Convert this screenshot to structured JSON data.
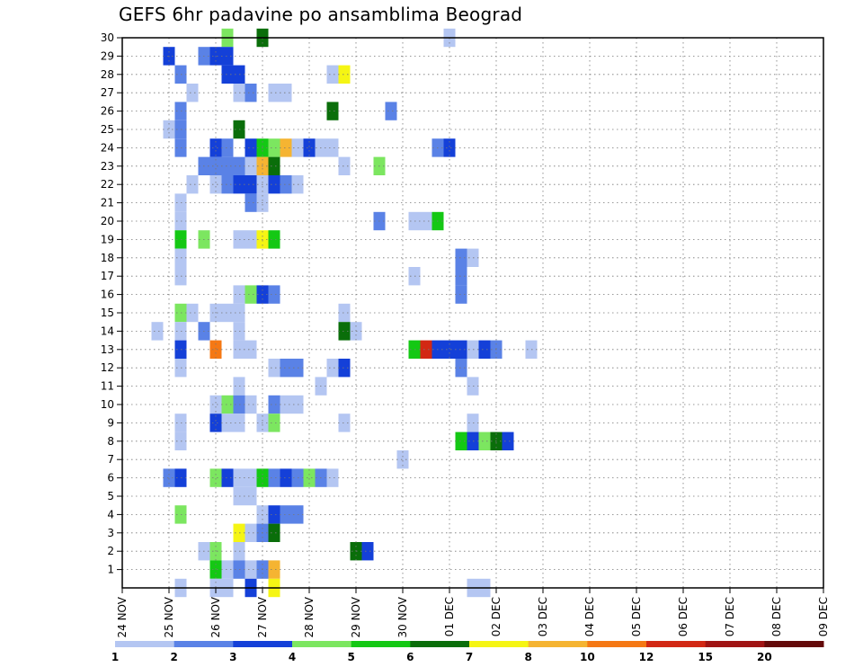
{
  "chart_data": {
    "type": "heatmap",
    "title": "GEFS 6hr padavine po ansamblima Beograd",
    "x_ticks": [
      "24 NOV",
      "25 NOV",
      "26 NOV",
      "27 NOV",
      "28 NOV",
      "29 NOV",
      "30 NOV",
      "01 DEC",
      "02 DEC",
      "03 DEC",
      "04 DEC",
      "05 DEC",
      "06 DEC",
      "07 DEC",
      "08 DEC",
      "09 DEC"
    ],
    "x_steps_per_day": 4,
    "y_ticks": [
      1,
      2,
      3,
      4,
      5,
      6,
      7,
      8,
      9,
      10,
      11,
      12,
      13,
      14,
      15,
      16,
      17,
      18,
      19,
      20,
      21,
      22,
      23,
      24,
      25,
      26,
      27,
      28,
      29,
      30
    ],
    "ylim": [
      0,
      30
    ],
    "grid": true,
    "legend": {
      "position": "bottom",
      "labels": [
        "1",
        "2",
        "3",
        "4",
        "5",
        "6",
        "7",
        "8",
        "10",
        "12",
        "15",
        "20"
      ],
      "colors": [
        "#b4c6f2",
        "#5a82e6",
        "#1440d8",
        "#7ce660",
        "#14c814",
        "#0a6e0a",
        "#f5f514",
        "#f5b432",
        "#f57814",
        "#d22814",
        "#a01414",
        "#640a0a"
      ]
    },
    "cells": [
      [
        8,
        30,
        4
      ],
      [
        11,
        30,
        6
      ],
      [
        27,
        30,
        1
      ],
      [
        3,
        29,
        3
      ],
      [
        6,
        29,
        2
      ],
      [
        7,
        29,
        3
      ],
      [
        8,
        29,
        3
      ],
      [
        4,
        28,
        2
      ],
      [
        8,
        28,
        3
      ],
      [
        9,
        28,
        3
      ],
      [
        17,
        28,
        1
      ],
      [
        18,
        28,
        7
      ],
      [
        5,
        27,
        1
      ],
      [
        9,
        27,
        1
      ],
      [
        10,
        27,
        2
      ],
      [
        12,
        27,
        1
      ],
      [
        13,
        27,
        1
      ],
      [
        4,
        26,
        2
      ],
      [
        17,
        26,
        6
      ],
      [
        22,
        26,
        2
      ],
      [
        3,
        25,
        1
      ],
      [
        4,
        25,
        2
      ],
      [
        9,
        25,
        6
      ],
      [
        4,
        24,
        2
      ],
      [
        7,
        24,
        3
      ],
      [
        8,
        24,
        2
      ],
      [
        10,
        24,
        3
      ],
      [
        11,
        24,
        5
      ],
      [
        12,
        24,
        4
      ],
      [
        13,
        24,
        8
      ],
      [
        14,
        24,
        1
      ],
      [
        15,
        24,
        3
      ],
      [
        16,
        24,
        1
      ],
      [
        17,
        24,
        1
      ],
      [
        26,
        24,
        2
      ],
      [
        27,
        24,
        3
      ],
      [
        6,
        23,
        2
      ],
      [
        7,
        23,
        2
      ],
      [
        8,
        23,
        2
      ],
      [
        9,
        23,
        2
      ],
      [
        10,
        23,
        1
      ],
      [
        11,
        23,
        8
      ],
      [
        12,
        23,
        6
      ],
      [
        18,
        23,
        1
      ],
      [
        21,
        23,
        4
      ],
      [
        5,
        22,
        1
      ],
      [
        7,
        22,
        1
      ],
      [
        8,
        22,
        2
      ],
      [
        9,
        22,
        3
      ],
      [
        10,
        22,
        3
      ],
      [
        11,
        22,
        1
      ],
      [
        12,
        22,
        3
      ],
      [
        13,
        22,
        2
      ],
      [
        14,
        22,
        1
      ],
      [
        4,
        21,
        1
      ],
      [
        10,
        21,
        2
      ],
      [
        11,
        21,
        1
      ],
      [
        4,
        20,
        1
      ],
      [
        21,
        20,
        2
      ],
      [
        24,
        20,
        1
      ],
      [
        25,
        20,
        1
      ],
      [
        26,
        20,
        5
      ],
      [
        4,
        19,
        5
      ],
      [
        6,
        19,
        4
      ],
      [
        9,
        19,
        1
      ],
      [
        10,
        19,
        1
      ],
      [
        11,
        19,
        7
      ],
      [
        12,
        19,
        5
      ],
      [
        4,
        18,
        1
      ],
      [
        28,
        18,
        2
      ],
      [
        29,
        18,
        1
      ],
      [
        4,
        17,
        1
      ],
      [
        24,
        17,
        1
      ],
      [
        28,
        17,
        2
      ],
      [
        9,
        16,
        1
      ],
      [
        10,
        16,
        4
      ],
      [
        11,
        16,
        3
      ],
      [
        12,
        16,
        2
      ],
      [
        28,
        16,
        2
      ],
      [
        4,
        15,
        4
      ],
      [
        5,
        15,
        1
      ],
      [
        7,
        15,
        1
      ],
      [
        8,
        15,
        1
      ],
      [
        9,
        15,
        1
      ],
      [
        18,
        15,
        1
      ],
      [
        2,
        14,
        1
      ],
      [
        4,
        14,
        1
      ],
      [
        6,
        14,
        2
      ],
      [
        9,
        14,
        1
      ],
      [
        18,
        14,
        6
      ],
      [
        19,
        14,
        1
      ],
      [
        4,
        13,
        3
      ],
      [
        7,
        13,
        9
      ],
      [
        9,
        13,
        1
      ],
      [
        10,
        13,
        1
      ],
      [
        24,
        13,
        5
      ],
      [
        25,
        13,
        10
      ],
      [
        26,
        13,
        3
      ],
      [
        27,
        13,
        3
      ],
      [
        28,
        13,
        3
      ],
      [
        29,
        13,
        1
      ],
      [
        30,
        13,
        3
      ],
      [
        31,
        13,
        2
      ],
      [
        34,
        13,
        1
      ],
      [
        4,
        12,
        1
      ],
      [
        12,
        12,
        1
      ],
      [
        13,
        12,
        2
      ],
      [
        14,
        12,
        2
      ],
      [
        17,
        12,
        1
      ],
      [
        18,
        12,
        3
      ],
      [
        28,
        12,
        2
      ],
      [
        9,
        11,
        1
      ],
      [
        16,
        11,
        1
      ],
      [
        29,
        11,
        1
      ],
      [
        7,
        10,
        1
      ],
      [
        8,
        10,
        4
      ],
      [
        9,
        10,
        2
      ],
      [
        10,
        10,
        1
      ],
      [
        12,
        10,
        2
      ],
      [
        13,
        10,
        1
      ],
      [
        14,
        10,
        1
      ],
      [
        4,
        9,
        1
      ],
      [
        7,
        9,
        3
      ],
      [
        8,
        9,
        1
      ],
      [
        9,
        9,
        1
      ],
      [
        11,
        9,
        1
      ],
      [
        12,
        9,
        4
      ],
      [
        18,
        9,
        1
      ],
      [
        29,
        9,
        1
      ],
      [
        4,
        8,
        1
      ],
      [
        28,
        8,
        5
      ],
      [
        29,
        8,
        3
      ],
      [
        30,
        8,
        4
      ],
      [
        31,
        8,
        6
      ],
      [
        32,
        8,
        3
      ],
      [
        23,
        7,
        1
      ],
      [
        3,
        6,
        2
      ],
      [
        4,
        6,
        3
      ],
      [
        7,
        6,
        4
      ],
      [
        8,
        6,
        3
      ],
      [
        9,
        6,
        1
      ],
      [
        10,
        6,
        1
      ],
      [
        11,
        6,
        5
      ],
      [
        12,
        6,
        2
      ],
      [
        13,
        6,
        3
      ],
      [
        14,
        6,
        2
      ],
      [
        15,
        6,
        4
      ],
      [
        16,
        6,
        2
      ],
      [
        17,
        6,
        1
      ],
      [
        9,
        5,
        1
      ],
      [
        10,
        5,
        1
      ],
      [
        4,
        4,
        4
      ],
      [
        11,
        4,
        1
      ],
      [
        12,
        4,
        3
      ],
      [
        13,
        4,
        2
      ],
      [
        14,
        4,
        2
      ],
      [
        9,
        3,
        7
      ],
      [
        10,
        3,
        1
      ],
      [
        11,
        3,
        2
      ],
      [
        12,
        3,
        6
      ],
      [
        6,
        2,
        1
      ],
      [
        7,
        2,
        4
      ],
      [
        9,
        2,
        1
      ],
      [
        19,
        2,
        6
      ],
      [
        20,
        2,
        3
      ],
      [
        7,
        1,
        5
      ],
      [
        8,
        1,
        1
      ],
      [
        9,
        1,
        2
      ],
      [
        10,
        1,
        1
      ],
      [
        11,
        1,
        2
      ],
      [
        12,
        1,
        8
      ],
      [
        4,
        0,
        1
      ],
      [
        7,
        0,
        1
      ],
      [
        8,
        0,
        1
      ],
      [
        10,
        0,
        3
      ],
      [
        12,
        0,
        7
      ],
      [
        29,
        0,
        1
      ],
      [
        30,
        0,
        1
      ]
    ]
  }
}
